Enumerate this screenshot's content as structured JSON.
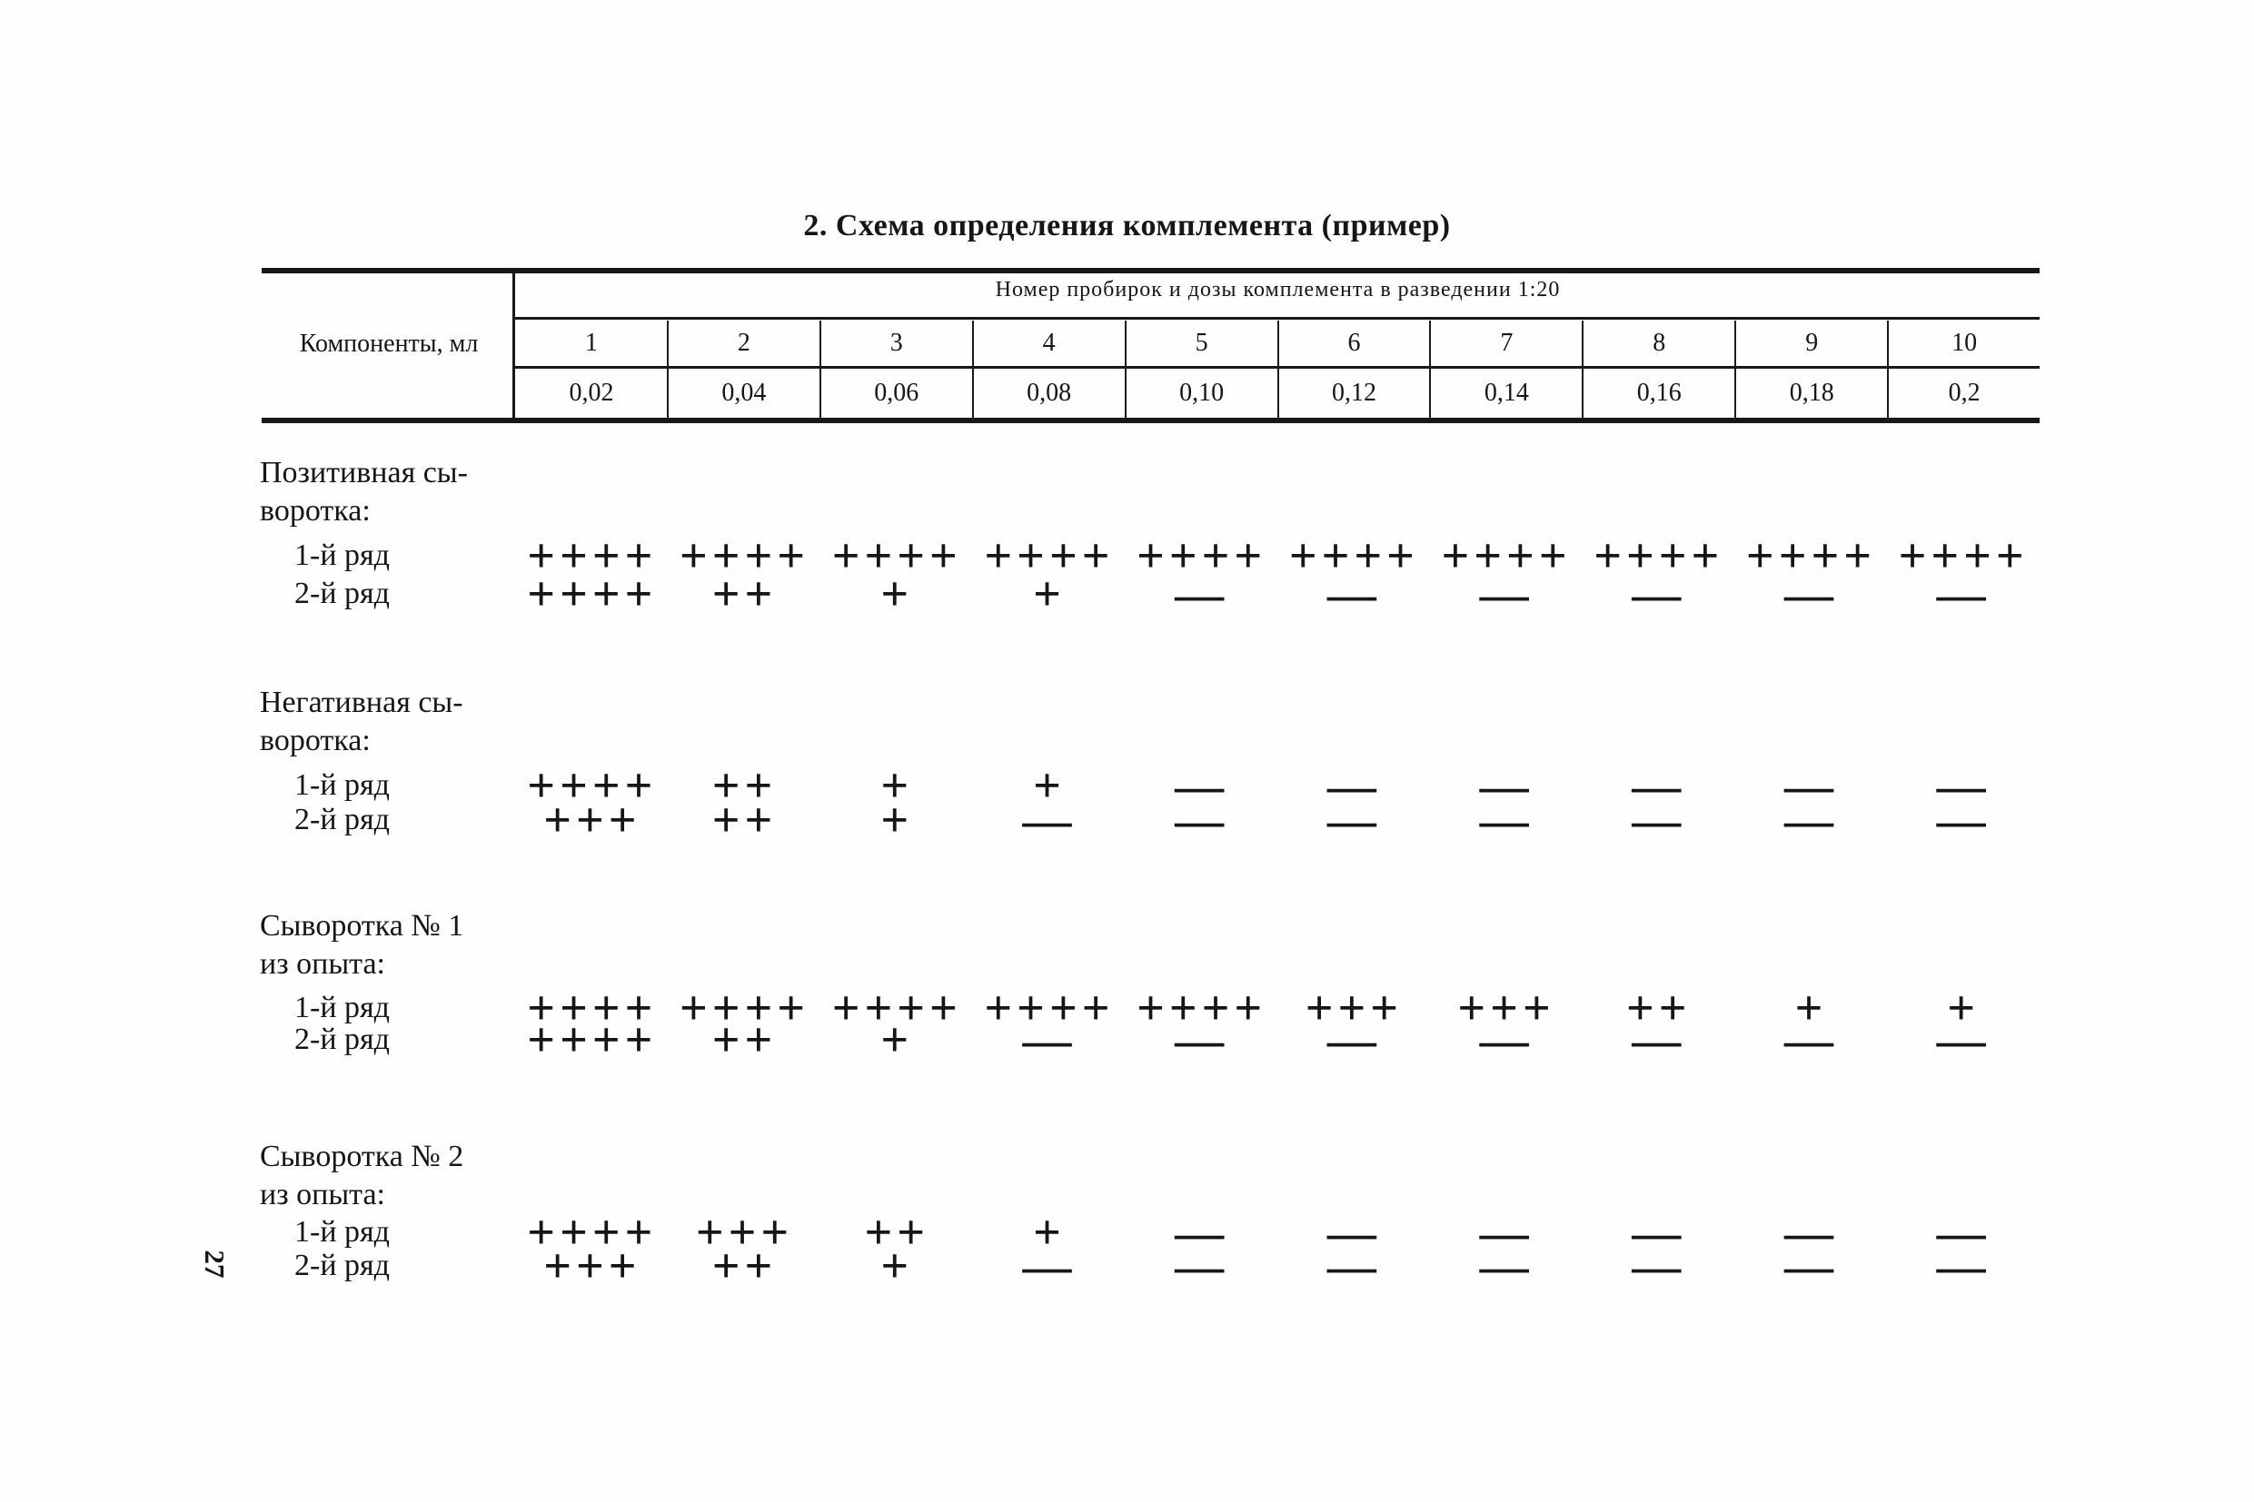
{
  "page": {
    "title": "2. Схема определения комплемента (пример)",
    "page_number": "27"
  },
  "table": {
    "components_label": "Компоненты, мл",
    "tubes_caption": "Номер пробирок и дозы комплемента в разведении 1:20",
    "tube_numbers": [
      "1",
      "2",
      "3",
      "4",
      "5",
      "6",
      "7",
      "8",
      "9",
      "10"
    ],
    "doses": [
      "0,02",
      "0,04",
      "0,06",
      "0,08",
      "0,10",
      "0,12",
      "0,14",
      "0,16",
      "0,18",
      "0,2"
    ]
  },
  "sections": [
    {
      "label_line1": "Позитивная сы-",
      "label_line2": "воротка:",
      "row1_label": "1-й ряд",
      "row2_label": "2-й ряд",
      "row1_values": [
        "++++",
        "++++",
        "++++",
        "++++",
        "++++",
        "++++",
        "++++",
        "++++",
        "++++",
        "++++"
      ],
      "row2_values": [
        "++++",
        "++",
        "+",
        "+",
        "—",
        "—",
        "—",
        "—",
        "—",
        "—"
      ]
    },
    {
      "label_line1": "Негативная сы-",
      "label_line2": "воротка:",
      "row1_label": "1-й ряд",
      "row2_label": "2-й ряд",
      "row1_values": [
        "++++",
        "++",
        "+",
        "+",
        "—",
        "—",
        "—",
        "—",
        "—",
        "—"
      ],
      "row2_values": [
        "+++",
        "++",
        "+",
        "—",
        "—",
        "—",
        "—",
        "—",
        "—",
        "—"
      ]
    },
    {
      "label_line1": "Сыворотка № 1",
      "label_line2": "из опыта:",
      "row1_label": "1-й ряд",
      "row2_label": "2-й ряд",
      "row1_values": [
        "++++",
        "++++",
        "++++",
        "++++",
        "++++",
        "+++",
        "+++",
        "++",
        "+",
        "+"
      ],
      "row2_values": [
        "++++",
        "++",
        "+",
        "—",
        "—",
        "—",
        "—",
        "—",
        "—",
        "—"
      ]
    },
    {
      "label_line1": "Сыворотка № 2",
      "label_line2": "из опыта:",
      "row1_label": "1-й ряд",
      "row2_label": "2-й ряд",
      "row1_values": [
        "++++",
        "+++",
        "++",
        "+",
        "—",
        "—",
        "—",
        "—",
        "—",
        "—"
      ],
      "row2_values": [
        "+++",
        "++",
        "+",
        "—",
        "—",
        "—",
        "—",
        "—",
        "—",
        "—"
      ]
    }
  ]
}
